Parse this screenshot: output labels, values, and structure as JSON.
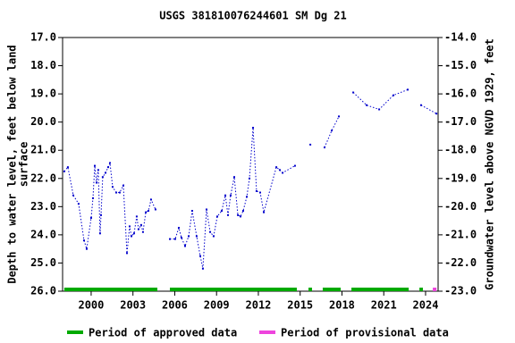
{
  "chart_data": {
    "type": "line",
    "title": "USGS 381810076244601 SM Dg  21",
    "ylabel": [
      "Depth to water level, feet below land",
      "surface"
    ],
    "y2label": "Groundwater level above NGVD 1929, feet",
    "xlim": [
      1997.95,
      2024.9
    ],
    "xticks": [
      2000,
      2003,
      2006,
      2009,
      2012,
      2015,
      2018,
      2021,
      2024
    ],
    "ylim": [
      26,
      17
    ],
    "yticks": [
      {
        "value": 17,
        "label": "17.0"
      },
      {
        "value": 18,
        "label": "18.0"
      },
      {
        "value": 19,
        "label": "19.0"
      },
      {
        "value": 20,
        "label": "20.0"
      },
      {
        "value": 21,
        "label": "21.0"
      },
      {
        "value": 22,
        "label": "22.0"
      },
      {
        "value": 23,
        "label": "23.0"
      },
      {
        "value": 24,
        "label": "24.0"
      },
      {
        "value": 25,
        "label": "25.0"
      },
      {
        "value": 26,
        "label": "26.0"
      }
    ],
    "y2lim": [
      -23,
      -14
    ],
    "y2ticks": [
      {
        "value": -14,
        "label": "-14.0"
      },
      {
        "value": -15,
        "label": "-15.0"
      },
      {
        "value": -16,
        "label": "-16.0"
      },
      {
        "value": -17,
        "label": "-17.0"
      },
      {
        "value": -18,
        "label": "-18.0"
      },
      {
        "value": -19,
        "label": "-19.0"
      },
      {
        "value": -20,
        "label": "-20.0"
      },
      {
        "value": -21,
        "label": "-21.0"
      },
      {
        "value": -22,
        "label": "-22.0"
      },
      {
        "value": -23,
        "label": "-23.0"
      }
    ],
    "series": [
      {
        "color": "#0000cc",
        "x": [
          1998.07,
          1998.33,
          1998.72,
          1999.1,
          1999.49,
          1999.68,
          2000,
          2000.13,
          2000.26,
          2000.39,
          2000.51,
          2000.64,
          2000.71,
          2000.83,
          2001.03,
          2001.22,
          2001.35,
          2001.54,
          2001.8,
          2002.05,
          2002.31,
          2002.57,
          2002.76,
          2002.89,
          2003.08,
          2003.27,
          2003.4,
          2003.59,
          2003.72,
          2003.92,
          2004.11,
          2004.3,
          2004.62,
          null,
          2005.65,
          2006.03,
          2006.29,
          2006.48,
          2006.74,
          2007.0,
          2007.25,
          2007.57,
          2007.83,
          2008.02,
          2008.28,
          2008.54,
          2008.79,
          2009.05,
          2009.37,
          2009.63,
          2009.82,
          2010.01,
          2010.27,
          2010.53,
          2010.72,
          2010.91,
          2011.17,
          2011.36,
          2011.62,
          2011.87,
          2012.13,
          2012.39,
          2013.29,
          2013.54,
          2013.74,
          2014.63,
          null,
          2015.73,
          null,
          2016.75,
          2017.27,
          2017.78,
          null,
          2018.81,
          2019.77,
          2020.67,
          2021.69,
          2022.72,
          null,
          2023.68,
          2024.78
        ],
        "values": [
          21.75,
          21.6,
          22.6,
          22.9,
          24.2,
          24.5,
          23.4,
          22.7,
          21.55,
          22.15,
          21.7,
          23.95,
          23.3,
          21.95,
          21.8,
          21.6,
          21.45,
          22.3,
          22.5,
          22.5,
          22.25,
          24.65,
          23.7,
          24.05,
          23.95,
          23.35,
          23.8,
          23.65,
          23.9,
          23.2,
          23.15,
          22.75,
          23.1,
          null,
          24.15,
          24.15,
          23.75,
          24.1,
          24.4,
          24.05,
          23.15,
          24.05,
          24.75,
          25.2,
          23.1,
          23.9,
          24.05,
          23.35,
          23.15,
          22.6,
          23.3,
          22.6,
          21.95,
          23.3,
          23.35,
          23.15,
          22.65,
          22.0,
          20.2,
          22.45,
          22.5,
          23.2,
          21.6,
          21.7,
          21.8,
          21.55,
          null,
          20.8,
          null,
          20.9,
          20.3,
          19.8,
          null,
          18.95,
          19.4,
          19.55,
          19.05,
          18.85,
          null,
          19.4,
          19.7
        ]
      }
    ],
    "periods": [
      {
        "label": "Period of approved data",
        "color": "#00aa00",
        "ranges": [
          [
            1998.07,
            2004.75
          ],
          [
            2005.65,
            2014.76
          ],
          [
            2015.6,
            2015.85
          ],
          [
            2016.62,
            2017.91
          ],
          [
            2018.68,
            2022.79
          ],
          [
            2023.56,
            2023.81
          ]
        ]
      },
      {
        "label": "Period of provisional data",
        "color": "#ee44dd",
        "ranges": [
          [
            2024.52,
            2024.78
          ]
        ]
      }
    ]
  }
}
